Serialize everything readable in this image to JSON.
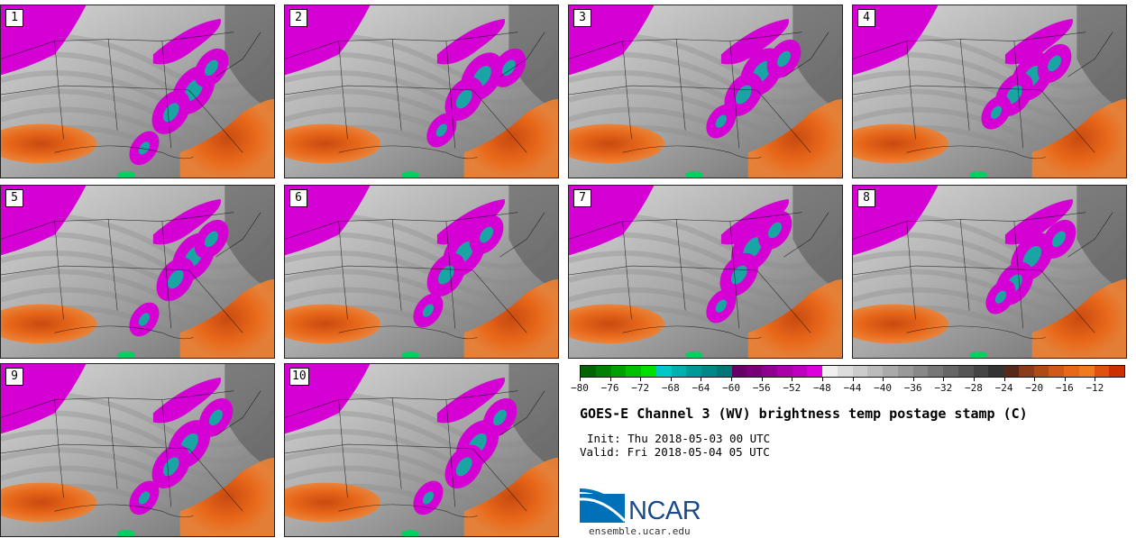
{
  "panels": [
    {
      "label": "1",
      "blobs": [
        [
          215,
          95
        ],
        [
          190,
          120
        ],
        [
          235,
          70
        ],
        [
          160,
          160
        ]
      ],
      "tint": 0
    },
    {
      "label": "2",
      "blobs": [
        [
          220,
          80
        ],
        [
          200,
          105
        ],
        [
          250,
          70
        ],
        [
          175,
          140
        ]
      ],
      "tint": 1
    },
    {
      "label": "3",
      "blobs": [
        [
          215,
          75
        ],
        [
          195,
          100
        ],
        [
          240,
          60
        ],
        [
          170,
          130
        ]
      ],
      "tint": 2
    },
    {
      "label": "4",
      "blobs": [
        [
          200,
          80
        ],
        [
          180,
          100
        ],
        [
          225,
          65
        ],
        [
          160,
          120
        ]
      ],
      "tint": 3
    },
    {
      "label": "5",
      "blobs": [
        [
          215,
          80
        ],
        [
          195,
          105
        ],
        [
          235,
          60
        ],
        [
          160,
          150
        ]
      ],
      "tint": 1
    },
    {
      "label": "6",
      "blobs": [
        [
          200,
          75
        ],
        [
          180,
          100
        ],
        [
          225,
          55
        ],
        [
          160,
          140
        ]
      ],
      "tint": 2
    },
    {
      "label": "7",
      "blobs": [
        [
          205,
          70
        ],
        [
          190,
          100
        ],
        [
          230,
          50
        ],
        [
          170,
          135
        ]
      ],
      "tint": 0
    },
    {
      "label": "8",
      "blobs": [
        [
          200,
          80
        ],
        [
          180,
          110
        ],
        [
          230,
          60
        ],
        [
          165,
          125
        ]
      ],
      "tint": 3
    },
    {
      "label": "9",
      "blobs": [
        [
          210,
          90
        ],
        [
          190,
          115
        ],
        [
          240,
          60
        ],
        [
          160,
          150
        ]
      ],
      "tint": 2
    },
    {
      "label": "10",
      "blobs": [
        [
          215,
          90
        ],
        [
          200,
          115
        ],
        [
          240,
          60
        ],
        [
          160,
          150
        ]
      ],
      "tint": 1
    }
  ],
  "colorbar": {
    "colors": [
      "#006400",
      "#007f00",
      "#00a000",
      "#00c000",
      "#00e000",
      "#00c8c8",
      "#00b0b0",
      "#009999",
      "#008888",
      "#007777",
      "#660066",
      "#7a007a",
      "#900090",
      "#aa00aa",
      "#c000c0",
      "#dd00dd",
      "#f0f0f0",
      "#dddddd",
      "#cccccc",
      "#bbbbbb",
      "#aaaaaa",
      "#999999",
      "#888888",
      "#777777",
      "#666666",
      "#555555",
      "#444444",
      "#333333",
      "#552a1a",
      "#8b3a1a",
      "#b04a15",
      "#d0581a",
      "#e8681a",
      "#f07a20",
      "#e05010",
      "#cc3000"
    ],
    "tick_labels": [
      "-80",
      "-76",
      "-72",
      "-68",
      "-64",
      "-60",
      "-56",
      "-52",
      "-48",
      "-44",
      "-40",
      "-36",
      "-32",
      "-28",
      "-24",
      "-20",
      "-16",
      "-12"
    ]
  },
  "title": "GOES-E Channel 3 (WV) brightness temp postage stamp (C)",
  "init": "Init: Thu 2018-05-03 00 UTC",
  "valid": "Valid: Fri 2018-05-04 05 UTC",
  "logo_text": "NCAR",
  "site": "ensemble.ucar.edu",
  "colors": {
    "magenta": "#d400d4",
    "teal": "#1aa5a5",
    "orange": "#e8681a",
    "deep_orange": "#c84a10",
    "gray_light": "#cfcfcf",
    "gray_dark": "#5a5a5a"
  }
}
